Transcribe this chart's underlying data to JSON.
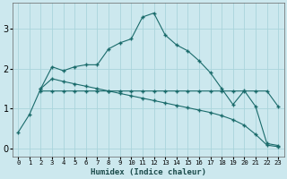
{
  "title": "",
  "xlabel": "Humidex (Indice chaleur)",
  "bg_color": "#cce8ee",
  "grid_color": "#aad4db",
  "line_color": "#1a6b6b",
  "xlim": [
    -0.5,
    23.5
  ],
  "ylim": [
    -0.2,
    3.65
  ],
  "xticks": [
    0,
    1,
    2,
    3,
    4,
    5,
    6,
    7,
    8,
    9,
    10,
    11,
    12,
    13,
    14,
    15,
    16,
    17,
    18,
    19,
    20,
    21,
    22,
    23
  ],
  "yticks": [
    0,
    1,
    2,
    3
  ],
  "line1_x": [
    0,
    1,
    2,
    3,
    4,
    5,
    6,
    7,
    8,
    9,
    10,
    11,
    12,
    13,
    14,
    15,
    16,
    17,
    18,
    19,
    20,
    21,
    22,
    23
  ],
  "line1_y": [
    0.4,
    0.85,
    1.5,
    2.05,
    1.95,
    2.05,
    2.1,
    2.1,
    2.5,
    2.65,
    2.75,
    3.3,
    3.4,
    2.85,
    2.6,
    2.45,
    2.2,
    1.9,
    1.5,
    1.1,
    1.45,
    1.05,
    0.12,
    0.07
  ],
  "line2_x": [
    2,
    3,
    4,
    5,
    6,
    7,
    8,
    9,
    10,
    11,
    12,
    13,
    14,
    15,
    16,
    17,
    18,
    19,
    20,
    21,
    22,
    23
  ],
  "line2_y": [
    1.5,
    1.75,
    1.68,
    1.62,
    1.56,
    1.5,
    1.44,
    1.38,
    1.32,
    1.26,
    1.2,
    1.14,
    1.08,
    1.02,
    0.96,
    0.9,
    0.82,
    0.72,
    0.58,
    0.35,
    0.08,
    0.04
  ],
  "line3_x": [
    2,
    3,
    4,
    5,
    6,
    7,
    8,
    9,
    10,
    11,
    12,
    13,
    14,
    15,
    16,
    17,
    18,
    19,
    20,
    21,
    22,
    23
  ],
  "line3_y": [
    1.44,
    1.44,
    1.44,
    1.44,
    1.44,
    1.44,
    1.44,
    1.44,
    1.44,
    1.44,
    1.44,
    1.44,
    1.44,
    1.44,
    1.44,
    1.44,
    1.44,
    1.44,
    1.44,
    1.44,
    1.44,
    1.05
  ]
}
